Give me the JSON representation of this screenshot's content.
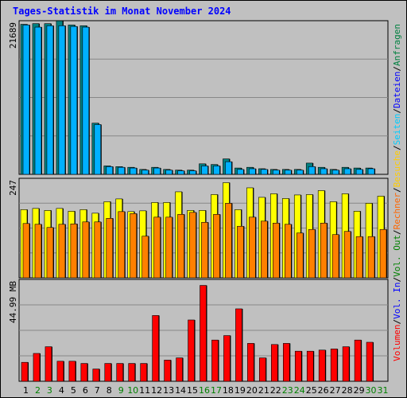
{
  "title": "Tages-Statistik im Monat November 2024",
  "legend": {
    "items": [
      {
        "text": "Volumen",
        "color": "#ff0000"
      },
      {
        "text": "/",
        "color": "#000000"
      },
      {
        "text": "Vol. In",
        "color": "#0000ff"
      },
      {
        "text": "/",
        "color": "#000000"
      },
      {
        "text": "Vol. Out",
        "color": "#008000"
      },
      {
        "text": "/",
        "color": "#000000"
      },
      {
        "text": "Rechner",
        "color": "#ff6600"
      },
      {
        "text": "/",
        "color": "#000000"
      },
      {
        "text": "Besuche",
        "color": "#ffcc00"
      },
      {
        "text": "/",
        "color": "#000000"
      },
      {
        "text": "Seiten",
        "color": "#00ccff"
      },
      {
        "text": "/",
        "color": "#000000"
      },
      {
        "text": "Dateien",
        "color": "#0000ff"
      },
      {
        "text": "/",
        "color": "#000000"
      },
      {
        "text": "Anfragen",
        "color": "#008040"
      }
    ]
  },
  "chart_data": {
    "type": "bar",
    "title": "Tages-Statistik im Monat November 2024",
    "categories": [
      "1",
      "2",
      "3",
      "4",
      "5",
      "6",
      "7",
      "8",
      "9",
      "10",
      "11",
      "12",
      "13",
      "14",
      "15",
      "16",
      "17",
      "18",
      "19",
      "20",
      "21",
      "22",
      "23",
      "24",
      "25",
      "26",
      "27",
      "28",
      "29",
      "30",
      "31"
    ],
    "weekend_days": [
      "2",
      "3",
      "9",
      "10",
      "16",
      "17",
      "23",
      "24",
      "30",
      "31"
    ],
    "colors": {
      "weekday_label": "#000000",
      "weekend_label": "#008000",
      "anfragen": "#008080",
      "dateien": "#00b0ff",
      "besuche": "#ffff00",
      "rechner": "#ff8000",
      "volumen": "#ff0000"
    },
    "panels": [
      {
        "id": "top",
        "ymax_label": "21689",
        "ymax": 21689,
        "series": [
          {
            "name": "Anfragen",
            "values": [
              21400,
              21500,
              21500,
              21900,
              21300,
              21200,
              7300,
              1200,
              1100,
              1000,
              700,
              1000,
              700,
              600,
              600,
              1500,
              1400,
              2200,
              900,
              1000,
              800,
              700,
              700,
              700,
              1600,
              1000,
              700,
              1000,
              900,
              900,
              null
            ]
          },
          {
            "name": "Dateien",
            "values": [
              21300,
              21000,
              21200,
              21200,
              21100,
              21000,
              7100,
              1100,
              1000,
              900,
              600,
              900,
              600,
              500,
              500,
              1200,
              1200,
              1800,
              700,
              800,
              700,
              600,
              600,
              600,
              1100,
              800,
              600,
              800,
              700,
              800,
              null
            ]
          }
        ]
      },
      {
        "id": "middle",
        "ymax_label": "247",
        "ymax": 247,
        "series": [
          {
            "name": "Besuche",
            "values": [
              172,
              175,
              170,
              175,
              168,
              172,
              163,
              192,
              199,
              167,
              169,
              190,
              190,
              217,
              170,
              170,
              210,
              240,
              172,
              227,
              203,
              212,
              200,
              209,
              210,
              220,
              192,
              212,
              168,
              188,
              206
            ]
          },
          {
            "name": "Rechner",
            "values": [
              137,
              135,
              127,
              135,
              136,
              141,
              141,
              150,
              167,
              162,
              105,
              153,
              153,
              160,
              165,
              140,
              160,
              188,
              130,
              153,
              143,
              138,
              135,
              113,
              122,
              138,
              109,
              117,
              104,
              104,
              122
            ]
          }
        ]
      },
      {
        "id": "bottom",
        "ymax_label": "44.99 MB",
        "ymax": 44.99,
        "series": [
          {
            "name": "Volumen",
            "values": [
              8.5,
              12.5,
              15.5,
              9.0,
              9.0,
              8.0,
              5.5,
              8.0,
              8.0,
              8.0,
              8.0,
              29.5,
              9.5,
              10.5,
              27.5,
              43.0,
              18.5,
              20.5,
              32.5,
              17.0,
              10.5,
              16.5,
              17.0,
              13.5,
              13.5,
              14.0,
              14.5,
              15.5,
              18.5,
              17.5,
              null
            ]
          }
        ]
      }
    ],
    "xlabel": "",
    "ylabel": ""
  }
}
